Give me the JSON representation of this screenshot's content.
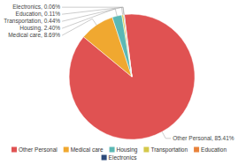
{
  "chart_data": {
    "type": "pie",
    "categories": [
      "Other Personal",
      "Medical care",
      "Housing",
      "Transportation",
      "Education",
      "Electronics"
    ],
    "values": [
      85.41,
      8.69,
      2.4,
      0.44,
      0.11,
      0.06
    ],
    "colors": [
      "#e05252",
      "#f0a830",
      "#5bb8b4",
      "#d4c84a",
      "#e8823a",
      "#2d4a7a"
    ],
    "value_labels": [
      "Other Personal, 85.41%",
      "Medical care, 8.69%",
      "Housing, 2.40%",
      "Transportation, 0.44%",
      "Education, 0.11%",
      "Electronics, 0.06%"
    ],
    "data_labels": true,
    "legend": "bottom"
  }
}
